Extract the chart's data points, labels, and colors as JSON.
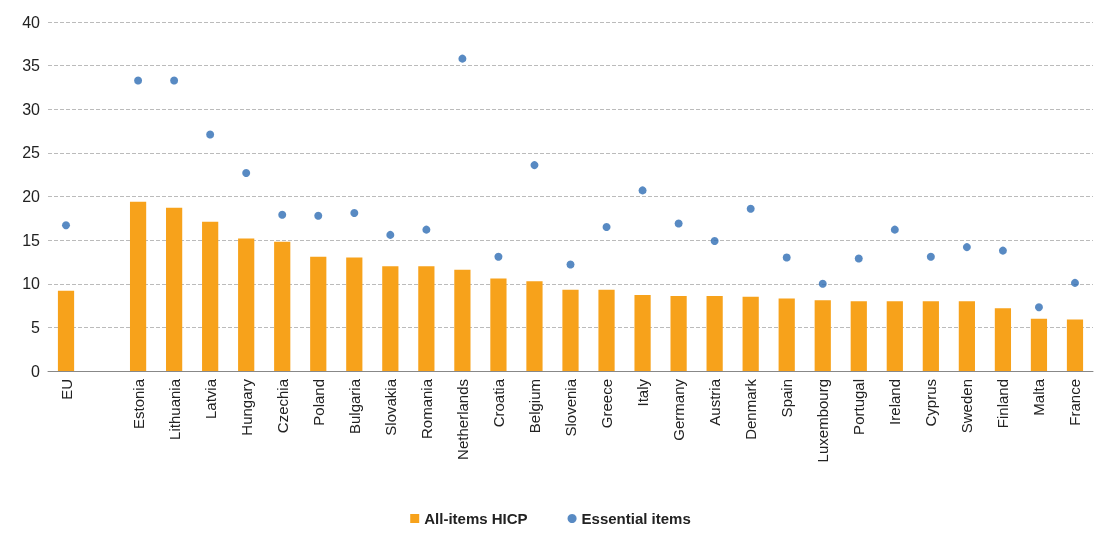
{
  "chart_data": {
    "type": "bar",
    "categories": [
      "EU",
      null,
      "Estonia",
      "Lithuania",
      "Latvia",
      "Hungary",
      "Czechia",
      "Poland",
      "Bulgaria",
      "Slovakia",
      "Romania",
      "Netherlands",
      "Croatia",
      "Belgium",
      "Slovenia",
      "Greece",
      "Italy",
      "Germany",
      "Austria",
      "Denmark",
      "Spain",
      "Luxembourg",
      "Portugal",
      "Ireland",
      "Cyprus",
      "Sweden",
      "Finland",
      "Malta",
      "France"
    ],
    "series": [
      {
        "name": "All-items HICP",
        "color": "#f7a21b",
        "values": [
          9.2,
          null,
          19.4,
          18.7,
          17.1,
          15.2,
          14.8,
          13.1,
          13.0,
          12.0,
          12.0,
          11.6,
          10.6,
          10.3,
          9.3,
          9.3,
          8.7,
          8.6,
          8.6,
          8.5,
          8.3,
          8.1,
          8.0,
          8.0,
          8.0,
          8.0,
          7.2,
          6.0,
          5.9
        ]
      },
      {
        "name": "Essential items",
        "type": "scatter",
        "color": "#2e6db4",
        "values": [
          16.7,
          null,
          33.3,
          33.3,
          27.1,
          22.7,
          17.9,
          17.8,
          18.1,
          15.6,
          16.2,
          35.8,
          13.1,
          23.6,
          12.2,
          16.5,
          20.7,
          16.9,
          14.9,
          18.6,
          13.0,
          10.0,
          12.9,
          16.2,
          13.1,
          14.2,
          13.8,
          7.3,
          10.1
        ]
      }
    ],
    "ylim": [
      0,
      40
    ],
    "yticks": [
      0,
      5,
      10,
      15,
      20,
      25,
      30,
      35,
      40
    ],
    "grid": "y",
    "legend": "bottom",
    "marker": "circle"
  }
}
